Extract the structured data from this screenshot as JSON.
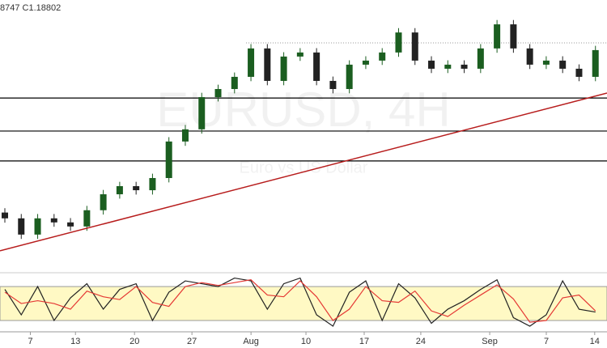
{
  "chart_data": {
    "type": "candlestick",
    "header": "8747 C1.18802",
    "watermark": "EURUSD, 4H",
    "watermark_subtitle": "Euro vs US Dollar",
    "x": [
      0,
      2,
      4,
      6,
      8,
      10,
      12,
      14,
      16,
      18,
      20,
      22,
      24,
      26,
      28,
      30,
      32,
      34,
      36,
      38,
      40,
      42,
      44,
      46,
      48,
      50,
      52,
      54,
      56,
      58,
      60,
      62,
      64,
      66,
      68,
      70,
      72
    ],
    "open": [
      1.132,
      1.13,
      1.1244,
      1.13,
      1.1286,
      1.1272,
      1.1328,
      1.1383,
      1.1411,
      1.1397,
      1.1439,
      1.1565,
      1.1607,
      1.1718,
      1.1746,
      1.1788,
      1.1886,
      1.1774,
      1.1858,
      1.1872,
      1.1774,
      1.1746,
      1.183,
      1.1844,
      1.1872,
      1.1941,
      1.1844,
      1.1816,
      1.183,
      1.1816,
      1.1886,
      1.1969,
      1.1886,
      1.183,
      1.1844,
      1.1816,
      1.1788
    ],
    "high": [
      1.1335,
      1.1315,
      1.1315,
      1.1315,
      1.1301,
      1.1343,
      1.1398,
      1.1426,
      1.1426,
      1.1454,
      1.158,
      1.1622,
      1.1733,
      1.1761,
      1.1803,
      1.1901,
      1.1901,
      1.1873,
      1.1887,
      1.1887,
      1.1789,
      1.1845,
      1.1859,
      1.1887,
      1.1956,
      1.1956,
      1.1859,
      1.1845,
      1.1845,
      1.1901,
      1.1984,
      1.1984,
      1.1901,
      1.1859,
      1.1859,
      1.1831,
      1.1895
    ],
    "low": [
      1.1285,
      1.1229,
      1.1229,
      1.1271,
      1.1257,
      1.1257,
      1.1313,
      1.1368,
      1.1382,
      1.1382,
      1.1424,
      1.155,
      1.1592,
      1.1703,
      1.1731,
      1.1773,
      1.1759,
      1.1759,
      1.1843,
      1.1759,
      1.1731,
      1.1731,
      1.1815,
      1.1829,
      1.1857,
      1.1829,
      1.1801,
      1.1801,
      1.1801,
      1.1801,
      1.1871,
      1.1871,
      1.1815,
      1.1815,
      1.1801,
      1.1773,
      1.1773
    ],
    "close": [
      1.13,
      1.1244,
      1.13,
      1.1286,
      1.1272,
      1.1328,
      1.1383,
      1.1411,
      1.1397,
      1.1439,
      1.1565,
      1.1607,
      1.1718,
      1.1746,
      1.1788,
      1.1886,
      1.1774,
      1.1858,
      1.1872,
      1.1774,
      1.1746,
      1.183,
      1.1844,
      1.1872,
      1.1941,
      1.1844,
      1.1816,
      1.183,
      1.1816,
      1.1886,
      1.1969,
      1.1886,
      1.183,
      1.1844,
      1.1816,
      1.1788,
      1.18802
    ],
    "up_color": "#1b5e20",
    "down_color": "#222222",
    "xlim": [
      0,
      74
    ],
    "ylim": [
      1.1118,
      1.2053
    ],
    "xticks": [
      {
        "value": 3.7,
        "label": "7"
      },
      {
        "value": 9.2,
        "label": "13"
      },
      {
        "value": 16.4,
        "label": "20"
      },
      {
        "value": 23.4,
        "label": "27"
      },
      {
        "value": 30.6,
        "label": "Aug"
      },
      {
        "value": 37.3,
        "label": "10"
      },
      {
        "value": 44.4,
        "label": "17"
      },
      {
        "value": 51.3,
        "label": "24"
      },
      {
        "value": 59.7,
        "label": "Sep"
      },
      {
        "value": 66.6,
        "label": "7"
      },
      {
        "value": 72.5,
        "label": "14"
      }
    ],
    "levels": [
      1.1715,
      1.1601,
      1.1498
    ],
    "dotted_level": 1.1905,
    "trendline": [
      [
        0,
        1.1188
      ],
      [
        74,
        1.1732
      ]
    ],
    "trendline_color": "#b71c1c",
    "stochastic": {
      "ylim": [
        0,
        103
      ],
      "band": [
        20,
        80
      ],
      "band_color": "#fff9c4",
      "series": [
        {
          "color": "#222222",
          "values": [
            75,
            30,
            80,
            20,
            60,
            85,
            40,
            75,
            85,
            20,
            70,
            90,
            85,
            80,
            95,
            90,
            40,
            85,
            95,
            30,
            10,
            70,
            90,
            20,
            85,
            60,
            15,
            40,
            55,
            75,
            92,
            25,
            10,
            30,
            90,
            40,
            35
          ]
        },
        {
          "color": "#e53935",
          "values": [
            70,
            50,
            55,
            50,
            40,
            72,
            62,
            57,
            80,
            52,
            45,
            80,
            87,
            82,
            87,
            92,
            65,
            62,
            90,
            62,
            20,
            40,
            80,
            55,
            52,
            72,
            37,
            27,
            47,
            65,
            83,
            58,
            17,
            20,
            60,
            65,
            37
          ]
        }
      ]
    }
  }
}
